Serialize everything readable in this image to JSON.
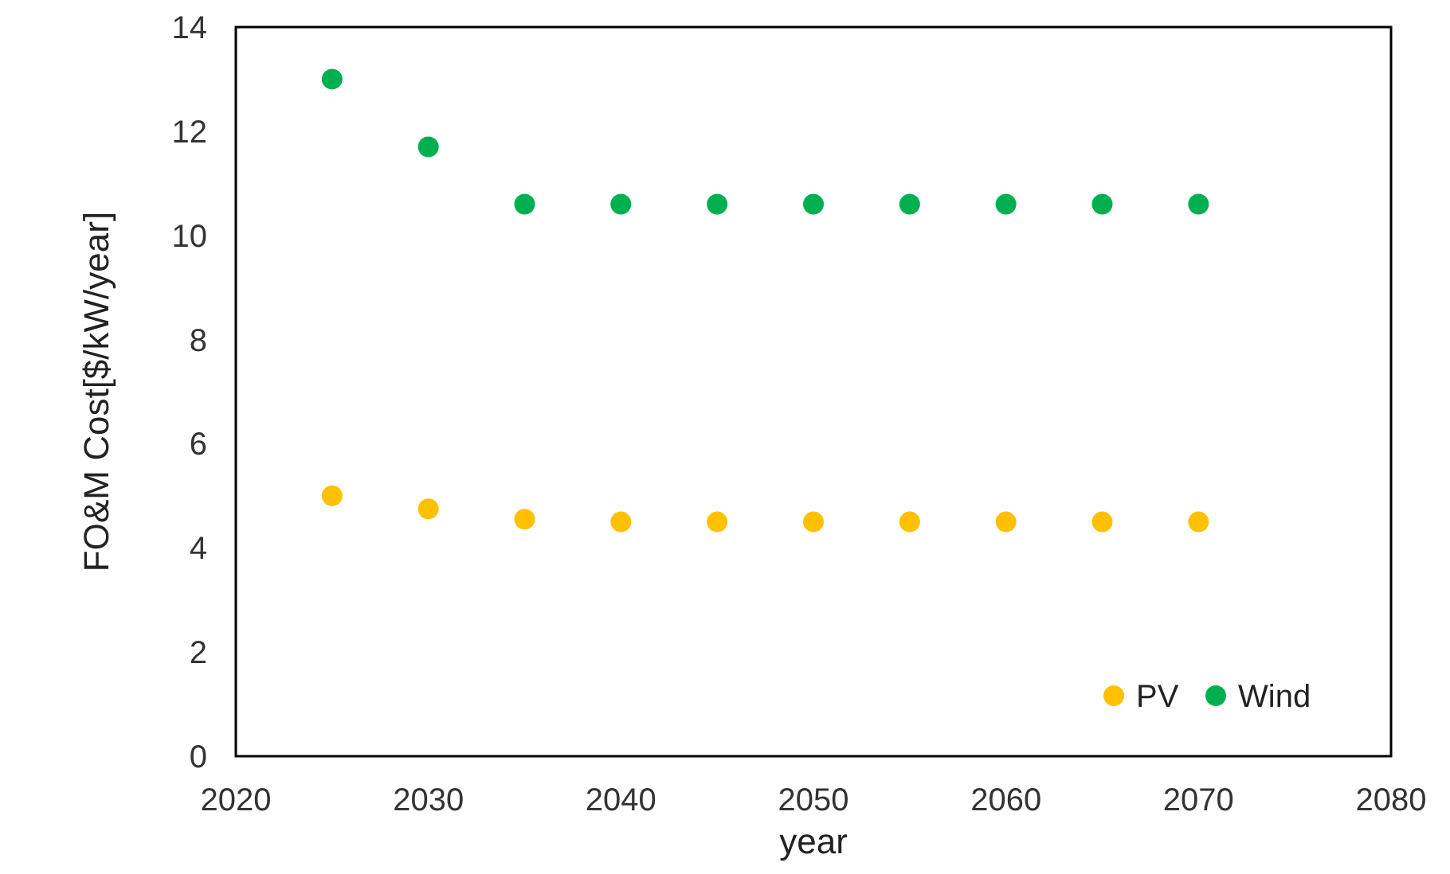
{
  "chart_data": {
    "type": "scatter",
    "xlabel": "year",
    "ylabel": "FO&M Cost[$/kW/year]",
    "x": [
      2025,
      2030,
      2035,
      2040,
      2045,
      2050,
      2055,
      2060,
      2065,
      2070
    ],
    "series": [
      {
        "name": "PV",
        "color": "#ffc000",
        "values": [
          5.0,
          4.75,
          4.55,
          4.5,
          4.5,
          4.5,
          4.5,
          4.5,
          4.5,
          4.5
        ]
      },
      {
        "name": "Wind",
        "color": "#00b050",
        "values": [
          13.0,
          11.7,
          10.6,
          10.6,
          10.6,
          10.6,
          10.6,
          10.6,
          10.6,
          10.6
        ]
      }
    ],
    "xlim": [
      2020,
      2080
    ],
    "xticks": [
      2020,
      2030,
      2040,
      2050,
      2060,
      2070,
      2080
    ],
    "ylim": [
      0,
      14
    ],
    "yticks": [
      0,
      2,
      4,
      6,
      8,
      10,
      12,
      14
    ],
    "grid": false,
    "legend": "bottom right",
    "marker": "circle"
  }
}
